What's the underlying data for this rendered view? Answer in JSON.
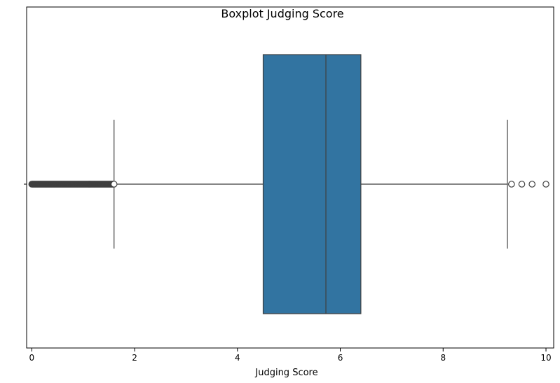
{
  "chart_data": {
    "type": "boxplot",
    "title": "Boxplot Judging Score",
    "xlabel": "Judging Score",
    "ylabel": "",
    "xlim": [
      -0.1,
      10.15
    ],
    "x_ticks": [
      0,
      2,
      4,
      6,
      8,
      10
    ],
    "x_tick_labels": [
      "0",
      "2",
      "4",
      "6",
      "8",
      "10"
    ],
    "orientation": "horizontal",
    "grid": false,
    "box": {
      "whisker_low": 1.6,
      "q1": 4.5,
      "median": 5.72,
      "q3": 6.4,
      "whisker_high": 9.25
    },
    "outliers_low_range": [
      0.0,
      1.6
    ],
    "outliers_high": [
      9.33,
      9.53,
      9.73,
      10.0
    ],
    "colors": {
      "box_fill": "#3274a1",
      "line": "#3f3f3f",
      "outlier_edge": "#3f3f3f"
    }
  }
}
